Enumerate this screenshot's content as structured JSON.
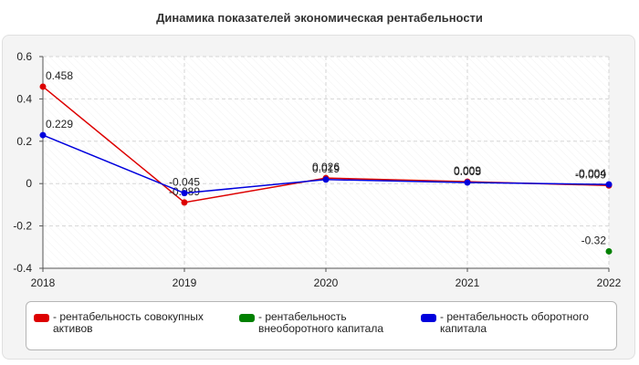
{
  "title": "Динамика показателей экономическая рентабельности",
  "chart_data": {
    "type": "line",
    "x": [
      "2018",
      "2019",
      "2020",
      "2021",
      "2022"
    ],
    "ylim": [
      -0.4,
      0.6
    ],
    "y_ticks": [
      "0.6",
      "0.4",
      "0.2",
      "0",
      "-0.2",
      "-0.4"
    ],
    "y_tick_values": [
      0.6,
      0.4,
      0.2,
      0,
      -0.2,
      -0.4
    ],
    "grid": true,
    "legend_position": "bottom",
    "series": [
      {
        "name": "- рентабельность совокупных активов",
        "color": "#dd0000",
        "values": [
          0.458,
          -0.089,
          0.026,
          0.009,
          -0.009
        ],
        "labels": [
          "0.458",
          "-0.089",
          "0.026",
          "0.009",
          "-0.009"
        ]
      },
      {
        "name": "- рентабельность внеоборотного капитала",
        "color": "#008000",
        "values": [
          null,
          null,
          null,
          null,
          -0.32
        ],
        "labels": [
          null,
          null,
          null,
          null,
          "-0.32"
        ]
      },
      {
        "name": "- рентабельность оборотного капитала",
        "color": "#0000dd",
        "values": [
          0.229,
          -0.045,
          0.019,
          0.005,
          -0.004
        ],
        "labels": [
          "0.229",
          "-0.045",
          "0.019",
          "0.005",
          "-0.004"
        ]
      }
    ]
  }
}
